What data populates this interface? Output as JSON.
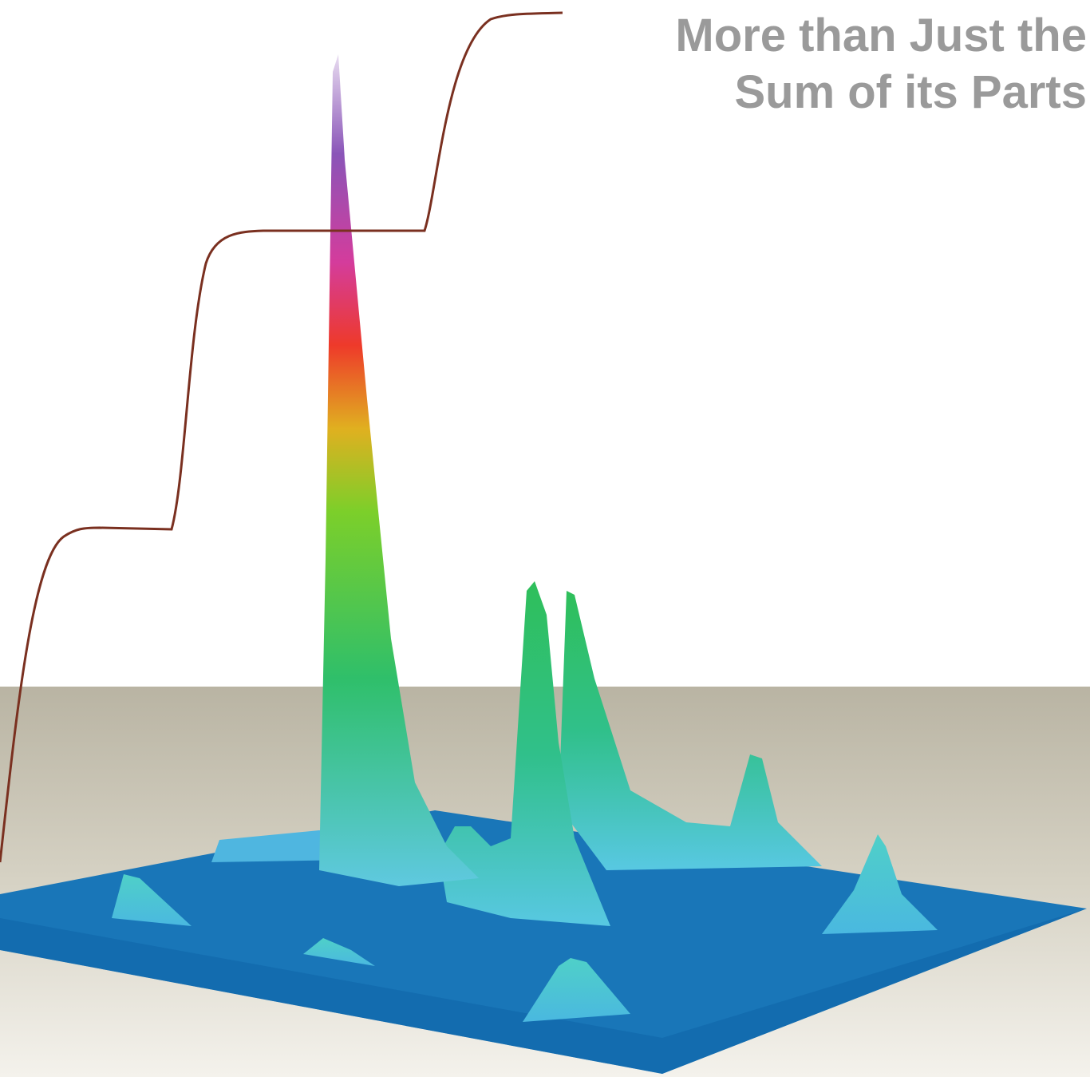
{
  "headline": {
    "line1": "More than Just the",
    "line2": "Sum of its Parts"
  }
}
